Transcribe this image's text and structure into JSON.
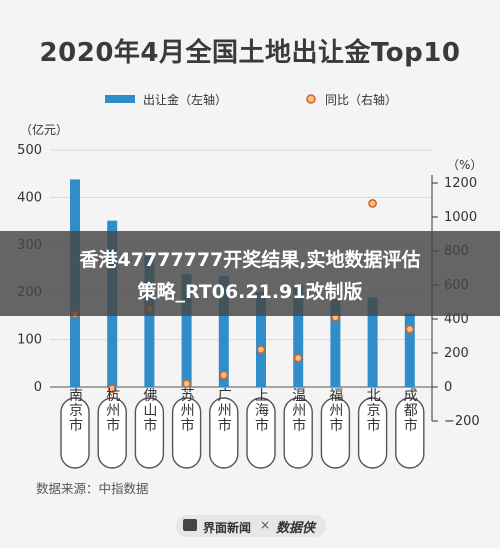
{
  "chart_data": {
    "type": "bar",
    "title": "2020年4月全国土地出让金Top10",
    "legend": {
      "bar_label": "出让金（左轴）",
      "dot_label": "同比（右轴）",
      "placement": "top"
    },
    "left_axis": {
      "unit_label": "（亿元）",
      "ticks": [
        0,
        100,
        200,
        300,
        400,
        500
      ],
      "range": [
        0,
        500
      ]
    },
    "right_axis": {
      "unit_label": "（%）",
      "ticks": [
        -200,
        0,
        200,
        400,
        600,
        800,
        1000,
        1200
      ],
      "range": [
        -200,
        1200
      ]
    },
    "categories": [
      "南京市",
      "杭州市",
      "佛山市",
      "苏州市",
      "广州市",
      "上海市",
      "温州市",
      "福州市",
      "北京市",
      "成都市"
    ],
    "series": [
      {
        "name": "出让金（左轴）",
        "axis": "left",
        "kind": "bar",
        "values": [
          438,
          351,
          283,
          238,
          234,
          200,
          214,
          187,
          189,
          155
        ]
      },
      {
        "name": "同比（右轴）",
        "axis": "right",
        "kind": "dot",
        "values": [
          430,
          -10,
          460,
          20,
          70,
          220,
          170,
          410,
          1080,
          340
        ]
      }
    ],
    "colors": {
      "bar": "#2f8ec8",
      "dot_fill": "#f6c07e",
      "dot_stroke": "#d5642c",
      "grid": "#d9d9d9"
    },
    "grid": true
  },
  "overlay": {
    "line1": "香港47777777开奖结果,实地数据评估",
    "line2": "策略_RT06.21.91改制版"
  },
  "source_text": "数据来源：中指数据",
  "footer": {
    "left": "界面新闻",
    "x": "×",
    "right": "数据侠"
  }
}
